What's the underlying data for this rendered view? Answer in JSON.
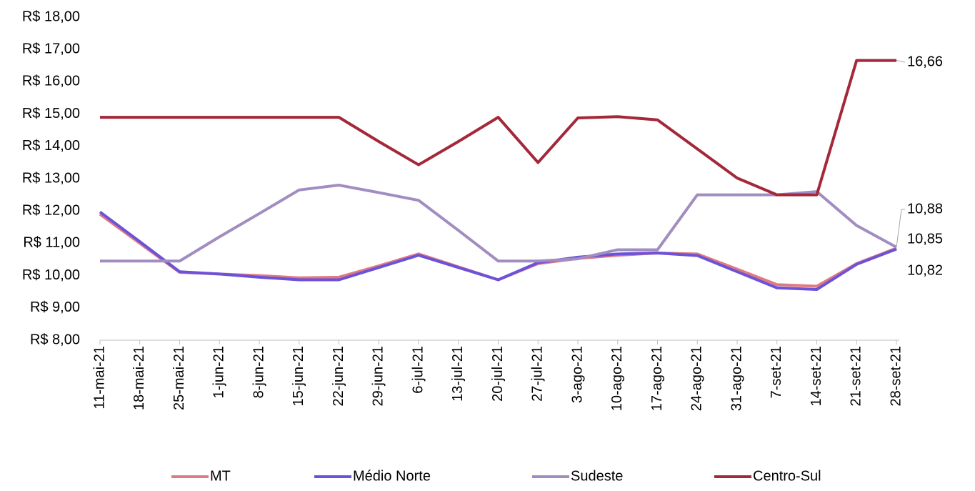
{
  "chart_data": {
    "type": "line",
    "categories": [
      "11-mai-21",
      "18-mai-21",
      "25-mai-21",
      "1-jun-21",
      "8-jun-21",
      "15-jun-21",
      "22-jun-21",
      "29-jun-21",
      "6-jul-21",
      "13-jul-21",
      "20-jul-21",
      "27-jul-21",
      "3-ago-21",
      "10-ago-21",
      "17-ago-21",
      "24-ago-21",
      "31-ago-21",
      "7-set-21",
      "14-set-21",
      "21-set-21",
      "28-set-21"
    ],
    "series": [
      {
        "name": "MT",
        "color": "#e07a82",
        "values": [
          11.9,
          11.0,
          10.1,
          10.05,
          10.0,
          9.93,
          9.95,
          10.3,
          10.67,
          10.27,
          9.87,
          10.37,
          10.53,
          10.63,
          10.7,
          10.67,
          10.2,
          9.72,
          9.67,
          10.37,
          10.85
        ],
        "value_labels": [
          null,
          null,
          null,
          null,
          null,
          null,
          null,
          null,
          null,
          null,
          null,
          null,
          null,
          null,
          null,
          null,
          null,
          null,
          null,
          null,
          "10,85"
        ]
      },
      {
        "name": "Médio Norte",
        "color": "#6b52d9",
        "values": [
          11.97,
          11.05,
          10.12,
          10.05,
          9.95,
          9.87,
          9.87,
          10.25,
          10.63,
          10.25,
          9.87,
          10.4,
          10.57,
          10.67,
          10.7,
          10.62,
          10.12,
          9.62,
          9.57,
          10.35,
          10.82
        ],
        "value_labels": [
          null,
          null,
          null,
          null,
          null,
          null,
          null,
          null,
          null,
          null,
          null,
          null,
          null,
          null,
          null,
          null,
          null,
          null,
          null,
          null,
          "10,82"
        ]
      },
      {
        "name": "Sudeste",
        "color": "#a18dc1",
        "values": [
          10.45,
          10.45,
          10.45,
          11.2,
          11.92,
          12.65,
          12.8,
          12.57,
          12.33,
          11.4,
          10.45,
          10.45,
          10.52,
          10.8,
          10.8,
          12.5,
          12.5,
          12.5,
          12.6,
          11.55,
          10.88
        ],
        "value_labels": [
          null,
          null,
          null,
          null,
          null,
          null,
          null,
          null,
          null,
          null,
          null,
          null,
          null,
          null,
          null,
          null,
          null,
          null,
          null,
          null,
          "10,88"
        ]
      },
      {
        "name": "Centro-Sul",
        "color": "#a3283a",
        "values": [
          14.9,
          14.9,
          14.9,
          14.9,
          14.9,
          14.9,
          14.9,
          14.15,
          13.43,
          14.15,
          14.9,
          13.5,
          14.88,
          14.92,
          14.82,
          13.92,
          13.02,
          12.5,
          12.5,
          16.66,
          16.66
        ],
        "value_labels": [
          null,
          null,
          null,
          null,
          null,
          null,
          null,
          null,
          null,
          null,
          null,
          null,
          null,
          null,
          null,
          null,
          null,
          null,
          null,
          null,
          "16,66"
        ]
      }
    ],
    "ylim": [
      8,
      18
    ],
    "yticks": [
      {
        "value": 8,
        "label": "R$ 8,00"
      },
      {
        "value": 9,
        "label": "R$ 9,00"
      },
      {
        "value": 10,
        "label": "R$ 10,00"
      },
      {
        "value": 11,
        "label": "R$ 11,00"
      },
      {
        "value": 12,
        "label": "R$ 12,00"
      },
      {
        "value": 13,
        "label": "R$ 13,00"
      },
      {
        "value": 14,
        "label": "R$ 14,00"
      },
      {
        "value": 15,
        "label": "R$ 15,00"
      },
      {
        "value": 16,
        "label": "R$ 16,00"
      },
      {
        "value": 17,
        "label": "R$ 17,00"
      },
      {
        "value": 18,
        "label": "R$ 18,00"
      }
    ],
    "grid": false,
    "legend": "bottom"
  }
}
